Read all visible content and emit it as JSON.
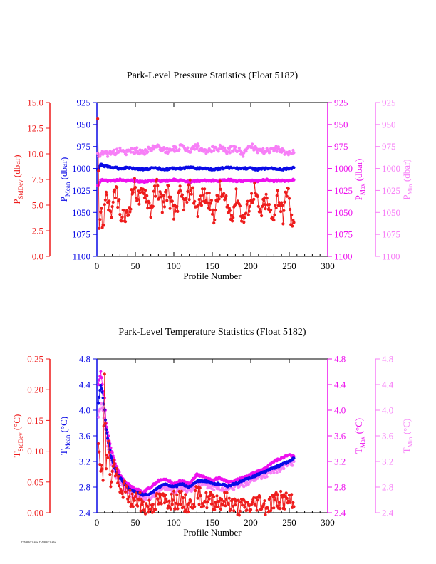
{
  "footer": {
    "tag": "F0083/F5182 F0085/F5182"
  },
  "colors": {
    "stddev": "#ee1c1c",
    "mean": "#0a0ae6",
    "max": "#ee11ee",
    "min": "#f77ff7",
    "axis": "#000000"
  },
  "chart_data": [
    {
      "type": "scatter",
      "title": "Park-Level Pressure Statistics (Float 5182)",
      "xlabel": "Profile Number",
      "xlim": [
        0,
        300
      ],
      "xticks": [
        "0",
        "50",
        "100",
        "150",
        "200",
        "250",
        "300"
      ],
      "axes": {
        "stddev": {
          "label_main": "P",
          "label_sub": "StdDev",
          "label_tail": " (dbar)",
          "lim": [
            0,
            15
          ],
          "ticks": [
            "0.0",
            "2.5",
            "5.0",
            "7.5",
            "10.0",
            "12.5",
            "15.0"
          ]
        },
        "mean": {
          "label_main": "P",
          "label_sub": "Mean",
          "label_tail": " (dbar)",
          "lim": [
            1100,
            925
          ],
          "ticks": [
            "1100",
            "1075",
            "1050",
            "1025",
            "1000",
            "975",
            "950",
            "925"
          ]
        },
        "max": {
          "label_main": "P",
          "label_sub": "Max",
          "label_tail": " (dbar)",
          "lim": [
            1100,
            925
          ],
          "ticks": [
            "1100",
            "1075",
            "1050",
            "1025",
            "1000",
            "975",
            "950",
            "925"
          ]
        },
        "min": {
          "label_main": "P",
          "label_sub": "Min",
          "label_tail": " (dbar)",
          "lim": [
            1100,
            925
          ],
          "ticks": [
            "1100",
            "1075",
            "1050",
            "1025",
            "1000",
            "975",
            "950",
            "925"
          ]
        }
      },
      "series": [
        {
          "key": "stddev",
          "x": [
            1,
            3,
            5,
            8,
            12,
            18,
            25,
            32,
            40,
            48,
            55,
            62,
            70,
            78,
            85,
            92,
            100,
            108,
            115,
            122,
            130,
            138,
            145,
            152,
            160,
            168,
            175,
            182,
            190,
            198,
            205,
            212,
            220,
            228,
            235,
            242,
            248,
            252,
            256
          ],
          "values": [
            14.3,
            3.0,
            4.5,
            2.8,
            6.5,
            4.0,
            6.5,
            3.5,
            4.0,
            7.0,
            5.5,
            6.5,
            4.5,
            7.0,
            5.0,
            6.5,
            4.0,
            6.0,
            5.0,
            7.0,
            4.5,
            6.0,
            5.5,
            4.0,
            6.5,
            5.0,
            4.0,
            6.0,
            3.5,
            5.0,
            6.5,
            4.0,
            5.5,
            3.5,
            6.0,
            4.0,
            7.0,
            3.5,
            3.3
          ]
        },
        {
          "key": "mean",
          "x": [
            1,
            5,
            10,
            20,
            30,
            40,
            50,
            60,
            70,
            80,
            90,
            100,
            110,
            120,
            130,
            140,
            150,
            160,
            170,
            180,
            190,
            200,
            210,
            220,
            230,
            240,
            250,
            256
          ],
          "values": [
            1002,
            996,
            997,
            999,
            1000,
            999,
            1000,
            1001,
            1000,
            1000,
            1001,
            1000,
            1000,
            999,
            1000,
            1000,
            1001,
            1000,
            999,
            1000,
            1000,
            1000,
            1001,
            1000,
            1000,
            1001,
            1000,
            999
          ]
        },
        {
          "key": "max",
          "x": [
            1,
            5,
            10,
            20,
            30,
            40,
            50,
            60,
            70,
            80,
            90,
            100,
            110,
            120,
            130,
            140,
            150,
            160,
            170,
            180,
            190,
            200,
            210,
            220,
            230,
            240,
            250,
            256
          ],
          "values": [
            1020,
            1013,
            1014,
            1014,
            1013,
            1014,
            1014,
            1015,
            1014,
            1014,
            1014,
            1013,
            1014,
            1015,
            1014,
            1014,
            1014,
            1014,
            1013,
            1014,
            1014,
            1014,
            1014,
            1013,
            1014,
            1014,
            1014,
            1013
          ]
        },
        {
          "key": "min",
          "x": [
            1,
            5,
            10,
            20,
            30,
            40,
            50,
            60,
            70,
            80,
            90,
            100,
            110,
            120,
            130,
            140,
            150,
            160,
            170,
            180,
            190,
            200,
            210,
            220,
            230,
            240,
            250,
            256
          ],
          "values": [
            985,
            983,
            984,
            982,
            980,
            982,
            979,
            981,
            978,
            975,
            980,
            978,
            976,
            979,
            974,
            982,
            978,
            977,
            980,
            976,
            983,
            974,
            979,
            981,
            977,
            980,
            983,
            982
          ]
        }
      ]
    },
    {
      "type": "scatter",
      "title": "Park-Level Temperature Statistics (Float 5182)",
      "xlabel": "Profile Number",
      "xlim": [
        0,
        300
      ],
      "xticks": [
        "0",
        "50",
        "100",
        "150",
        "200",
        "250",
        "300"
      ],
      "axes": {
        "stddev": {
          "label_main": "T",
          "label_sub": "StdDev",
          "label_tail": " (°C)",
          "lim": [
            0,
            0.25
          ],
          "ticks": [
            "0.00",
            "0.05",
            "0.10",
            "0.15",
            "0.20",
            "0.25"
          ]
        },
        "mean": {
          "label_main": "T",
          "label_sub": "Mean",
          "label_tail": " (°C)",
          "lim": [
            2.4,
            4.8
          ],
          "ticks": [
            "2.4",
            "2.8",
            "3.2",
            "3.6",
            "4.0",
            "4.4",
            "4.8"
          ]
        },
        "max": {
          "label_main": "T",
          "label_sub": "Max",
          "label_tail": " (°C)",
          "lim": [
            2.4,
            4.8
          ],
          "ticks": [
            "2.4",
            "2.8",
            "3.2",
            "3.6",
            "4.0",
            "4.4",
            "4.8"
          ]
        },
        "min": {
          "label_main": "T",
          "label_sub": "Min",
          "label_tail": " (°C)",
          "lim": [
            2.4,
            4.8
          ],
          "ticks": [
            "2.4",
            "2.8",
            "3.2",
            "3.6",
            "4.0",
            "4.4",
            "4.8"
          ]
        }
      },
      "series": [
        {
          "key": "stddev",
          "x": [
            2,
            5,
            8,
            10,
            12,
            15,
            18,
            22,
            26,
            30,
            35,
            40,
            45,
            50,
            55,
            60,
            70,
            80,
            90,
            100,
            110,
            120,
            130,
            140,
            150,
            160,
            170,
            180,
            190,
            200,
            210,
            220,
            230,
            240,
            250,
            256
          ],
          "values": [
            0.12,
            0.08,
            0.05,
            0.24,
            0.07,
            0.11,
            0.05,
            0.08,
            0.06,
            0.03,
            0.04,
            0.03,
            0.02,
            0.02,
            0.02,
            0.01,
            0.01,
            0.02,
            0.02,
            0.02,
            0.02,
            0.01,
            0.03,
            0.02,
            0.02,
            0.02,
            0.02,
            0.01,
            0.01,
            0.01,
            0.02,
            0.01,
            0.02,
            0.02,
            0.02,
            0.01
          ]
        },
        {
          "key": "mean",
          "x": [
            2,
            5,
            8,
            10,
            12,
            15,
            18,
            22,
            26,
            30,
            35,
            40,
            45,
            50,
            55,
            60,
            70,
            80,
            90,
            100,
            110,
            120,
            130,
            140,
            150,
            160,
            170,
            180,
            190,
            200,
            210,
            220,
            230,
            240,
            250,
            256
          ],
          "values": [
            4.1,
            4.4,
            4.2,
            4.0,
            3.7,
            3.5,
            3.3,
            3.15,
            3.0,
            2.95,
            2.85,
            2.8,
            2.75,
            2.72,
            2.7,
            2.68,
            2.7,
            2.8,
            2.85,
            2.8,
            2.85,
            2.8,
            2.9,
            2.9,
            2.85,
            2.85,
            2.82,
            2.85,
            2.9,
            2.95,
            3.0,
            3.05,
            3.1,
            3.15,
            3.2,
            3.25
          ]
        },
        {
          "key": "max",
          "x": [
            2,
            5,
            8,
            10,
            12,
            15,
            18,
            22,
            26,
            30,
            35,
            40,
            45,
            50,
            55,
            60,
            70,
            80,
            90,
            100,
            110,
            120,
            130,
            140,
            150,
            160,
            170,
            180,
            190,
            200,
            210,
            220,
            230,
            240,
            250,
            256
          ],
          "values": [
            4.4,
            4.6,
            4.3,
            4.2,
            3.8,
            3.6,
            3.4,
            3.25,
            3.1,
            3.0,
            2.9,
            2.85,
            2.8,
            2.78,
            2.75,
            2.72,
            2.8,
            2.9,
            2.92,
            2.85,
            2.9,
            2.85,
            3.0,
            2.95,
            2.9,
            2.95,
            2.88,
            2.9,
            2.95,
            3.0,
            3.05,
            3.1,
            3.2,
            3.25,
            3.3,
            3.28
          ]
        },
        {
          "key": "min",
          "x": [
            2,
            5,
            8,
            10,
            12,
            15,
            18,
            22,
            26,
            30,
            35,
            40,
            45,
            50,
            55,
            60,
            70,
            80,
            90,
            100,
            110,
            120,
            130,
            140,
            150,
            160,
            170,
            180,
            190,
            200,
            210,
            220,
            230,
            240,
            250,
            256
          ],
          "values": [
            3.9,
            4.1,
            4.0,
            3.8,
            3.6,
            3.4,
            3.2,
            3.05,
            2.95,
            2.9,
            2.8,
            2.75,
            2.7,
            2.68,
            2.66,
            2.64,
            2.65,
            2.75,
            2.8,
            2.75,
            2.8,
            2.75,
            2.85,
            2.85,
            2.8,
            2.8,
            2.78,
            2.8,
            2.85,
            2.9,
            2.95,
            3.0,
            3.05,
            3.1,
            3.15,
            3.2
          ]
        }
      ]
    }
  ]
}
